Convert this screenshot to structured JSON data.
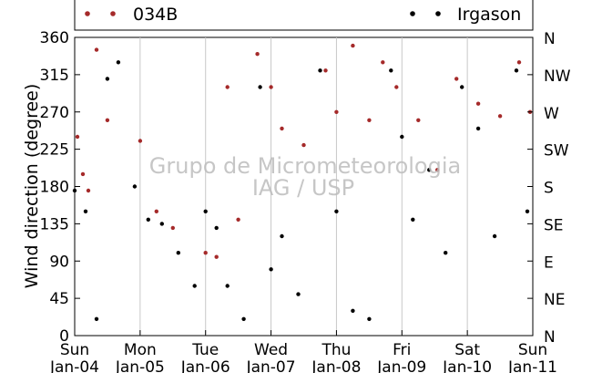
{
  "chart_data": {
    "type": "scatter",
    "xlabel": "",
    "ylabel": "Wind direction (degree)",
    "xlim": [
      "2015-01-04 00:00",
      "2015-01-11 00:00"
    ],
    "ylim": [
      0,
      360
    ],
    "x_tick_labels": [
      {
        "line1": "Sun",
        "line2": "Jan-04"
      },
      {
        "line1": "Mon",
        "line2": "Jan-05"
      },
      {
        "line1": "Tue",
        "line2": "Jan-06"
      },
      {
        "line1": "Wed",
        "line2": "Jan-07"
      },
      {
        "line1": "Thu",
        "line2": "Jan-08"
      },
      {
        "line1": "Fri",
        "line2": "Jan-09"
      },
      {
        "line1": "Sat",
        "line2": "Jan-10"
      },
      {
        "line1": "Sun",
        "line2": "Jan-11"
      }
    ],
    "y_ticks": [
      0,
      45,
      90,
      135,
      180,
      225,
      270,
      315,
      360
    ],
    "y2_tick_labels": [
      "N",
      "NE",
      "E",
      "SE",
      "S",
      "SW",
      "W",
      "NW",
      "N"
    ],
    "grid": "vertical at each day",
    "legend_position": "top, above plot",
    "watermark": [
      "Grupo de Micrometeorologia",
      "IAG / USP"
    ],
    "series": [
      {
        "name": "034B",
        "color": "#a52a2a",
        "points": [
          [
            "2015-01-04 01:00",
            240
          ],
          [
            "2015-01-04 03:00",
            195
          ],
          [
            "2015-01-04 05:00",
            175
          ],
          [
            "2015-01-04 08:00",
            345
          ],
          [
            "2015-01-04 12:00",
            260
          ],
          [
            "2015-01-05 00:00",
            235
          ],
          [
            "2015-01-05 06:00",
            150
          ],
          [
            "2015-01-05 12:00",
            130
          ],
          [
            "2015-01-06 00:00",
            100
          ],
          [
            "2015-01-06 04:00",
            95
          ],
          [
            "2015-01-06 08:00",
            300
          ],
          [
            "2015-01-06 12:00",
            140
          ],
          [
            "2015-01-06 19:00",
            340
          ],
          [
            "2015-01-07 00:00",
            300
          ],
          [
            "2015-01-07 04:00",
            250
          ],
          [
            "2015-01-07 12:00",
            230
          ],
          [
            "2015-01-07 20:00",
            320
          ],
          [
            "2015-01-08 00:00",
            270
          ],
          [
            "2015-01-08 06:00",
            350
          ],
          [
            "2015-01-08 12:00",
            260
          ],
          [
            "2015-01-08 17:00",
            330
          ],
          [
            "2015-01-08 22:00",
            300
          ],
          [
            "2015-01-09 06:00",
            260
          ],
          [
            "2015-01-09 13:00",
            200
          ],
          [
            "2015-01-09 20:00",
            310
          ],
          [
            "2015-01-10 04:00",
            280
          ],
          [
            "2015-01-10 12:00",
            265
          ],
          [
            "2015-01-10 19:00",
            330
          ],
          [
            "2015-01-10 23:00",
            270
          ]
        ]
      },
      {
        "name": "Irgason",
        "color": "#000000",
        "points": [
          [
            "2015-01-04 00:00",
            175
          ],
          [
            "2015-01-04 04:00",
            150
          ],
          [
            "2015-01-04 08:00",
            20
          ],
          [
            "2015-01-04 12:00",
            310
          ],
          [
            "2015-01-04 16:00",
            330
          ],
          [
            "2015-01-04 22:00",
            180
          ],
          [
            "2015-01-05 03:00",
            140
          ],
          [
            "2015-01-05 08:00",
            135
          ],
          [
            "2015-01-05 14:00",
            100
          ],
          [
            "2015-01-05 20:00",
            60
          ],
          [
            "2015-01-06 00:00",
            150
          ],
          [
            "2015-01-06 04:00",
            130
          ],
          [
            "2015-01-06 08:00",
            60
          ],
          [
            "2015-01-06 14:00",
            20
          ],
          [
            "2015-01-06 20:00",
            300
          ],
          [
            "2015-01-07 00:00",
            80
          ],
          [
            "2015-01-07 04:00",
            120
          ],
          [
            "2015-01-07 10:00",
            50
          ],
          [
            "2015-01-07 18:00",
            320
          ],
          [
            "2015-01-08 00:00",
            150
          ],
          [
            "2015-01-08 06:00",
            30
          ],
          [
            "2015-01-08 12:00",
            20
          ],
          [
            "2015-01-08 20:00",
            320
          ],
          [
            "2015-01-09 00:00",
            240
          ],
          [
            "2015-01-09 04:00",
            140
          ],
          [
            "2015-01-09 10:00",
            200
          ],
          [
            "2015-01-09 16:00",
            100
          ],
          [
            "2015-01-09 22:00",
            300
          ],
          [
            "2015-01-10 04:00",
            250
          ],
          [
            "2015-01-10 10:00",
            120
          ],
          [
            "2015-01-10 18:00",
            320
          ],
          [
            "2015-01-10 22:00",
            150
          ]
        ]
      }
    ]
  }
}
